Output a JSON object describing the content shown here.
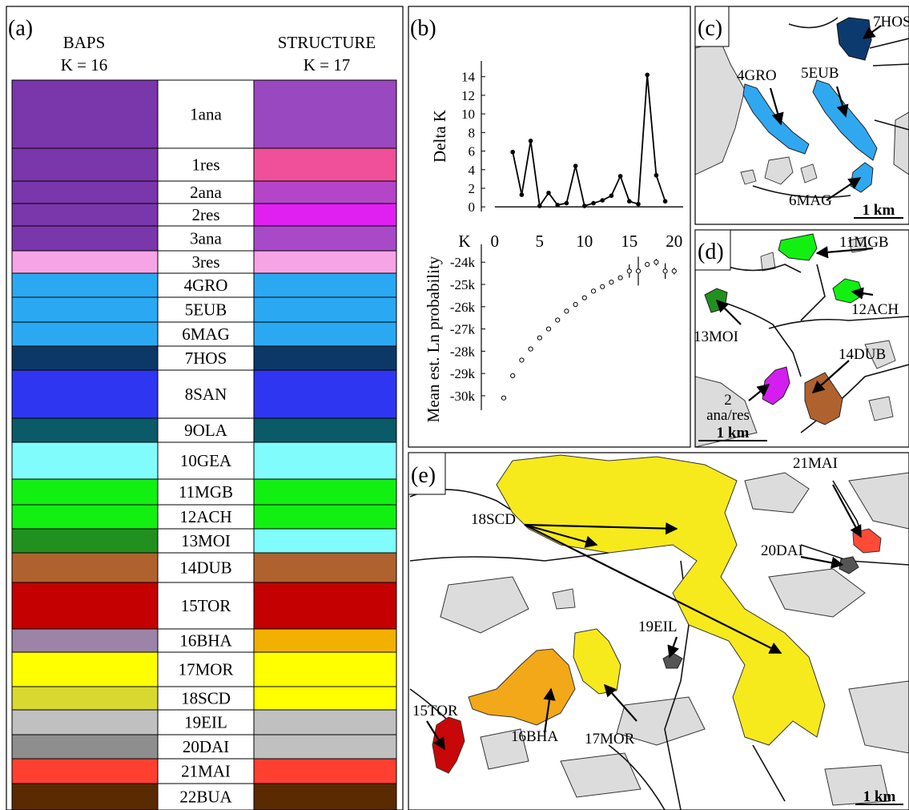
{
  "panel_a": {
    "label": "(a)",
    "left_method": "BAPS",
    "left_k": "K = 16",
    "right_method": "STRUCTURE",
    "right_k": "K = 17",
    "populations": [
      {
        "name": "1ana",
        "baps_color": "#7a36ab",
        "structure_color": "#9a48c0"
      },
      {
        "name": "1res",
        "baps_color": "#7a36ab",
        "structure_color": "#f0509a"
      },
      {
        "name": "2ana",
        "baps_color": "#7a36ab",
        "structure_color": "#b545c8"
      },
      {
        "name": "2res",
        "baps_color": "#7a36ab",
        "structure_color": "#e020f0"
      },
      {
        "name": "3ana",
        "baps_color": "#7a36ab",
        "structure_color": "#a84ac8"
      },
      {
        "name": "3res",
        "baps_color": "#f7a4e6",
        "structure_color": "#f7a4e6"
      },
      {
        "name": "4GRO",
        "baps_color": "#2aa9f2",
        "structure_color": "#2aa9f2"
      },
      {
        "name": "5EUB",
        "baps_color": "#2aa9f2",
        "structure_color": "#2aa9f2"
      },
      {
        "name": "6MAG",
        "baps_color": "#2aa9f2",
        "structure_color": "#2aa9f2"
      },
      {
        "name": "7HOS",
        "baps_color": "#0b3866",
        "structure_color": "#0b3866"
      },
      {
        "name": "8SAN",
        "baps_color": "#2f36f2",
        "structure_color": "#2f36f2"
      },
      {
        "name": "9OLA",
        "baps_color": "#0a5a68",
        "structure_color": "#0a5a68"
      },
      {
        "name": "10GEA",
        "baps_color": "#80fcfc",
        "structure_color": "#80fcfc"
      },
      {
        "name": "11MGB",
        "baps_color": "#12f012",
        "structure_color": "#12f012"
      },
      {
        "name": "12ACH",
        "baps_color": "#12f012",
        "structure_color": "#12f012"
      },
      {
        "name": "13MOI",
        "baps_color": "#22901e",
        "structure_color": "#80fcfc"
      },
      {
        "name": "14DUB",
        "baps_color": "#b0622e",
        "structure_color": "#b0622e"
      },
      {
        "name": "15TOR",
        "baps_color": "#c40000",
        "structure_color": "#c40000"
      },
      {
        "name": "16BHA",
        "baps_color": "#9c84a8",
        "structure_color": "#f2b000"
      },
      {
        "name": "17MOR",
        "baps_color": "#ffff00",
        "structure_color": "#ffff00"
      },
      {
        "name": "18SCD",
        "baps_color": "#d8d830",
        "structure_color": "#ffff00"
      },
      {
        "name": "19EIL",
        "baps_color": "#c0c0c0",
        "structure_color": "#c0c0c0"
      },
      {
        "name": "20DAI",
        "baps_color": "#8e8e8e",
        "structure_color": "#c0c0c0"
      },
      {
        "name": "21MAI",
        "baps_color": "#ff4030",
        "structure_color": "#ff4030"
      },
      {
        "name": "22BUA",
        "baps_color": "#5a2a00",
        "structure_color": "#5a2a00"
      }
    ]
  },
  "panel_b": {
    "label": "(b)"
  },
  "chart_data": [
    {
      "type": "line",
      "y_axis_label": "Delta K",
      "x_axis_label": "K",
      "color": "#000000",
      "x": [
        2,
        3,
        4,
        5,
        6,
        7,
        8,
        9,
        10,
        11,
        12,
        13,
        14,
        15,
        16,
        17,
        18,
        19
      ],
      "values": [
        5.9,
        1.3,
        7.1,
        0.1,
        1.5,
        0.2,
        0.4,
        4.4,
        0.1,
        0.4,
        0.7,
        1.2,
        3.3,
        0.6,
        0.3,
        14.2,
        3.4,
        0.6
      ],
      "xlim": [
        -1.5,
        21
      ],
      "ylim": [
        -0.5,
        15.7
      ],
      "xticks": [
        0,
        5,
        10,
        15,
        20
      ],
      "yticks": [
        0,
        2,
        4,
        6,
        8,
        10,
        12,
        14
      ]
    },
    {
      "type": "scatter",
      "y_axis_label": "Mean est. Ln probability",
      "color": "#000000",
      "x": [
        1,
        2,
        3,
        4,
        5,
        6,
        7,
        8,
        9,
        10,
        11,
        12,
        13,
        14,
        15,
        16,
        17,
        18,
        19,
        20
      ],
      "values": [
        -30100,
        -29100,
        -28400,
        -27900,
        -27400,
        -27000,
        -26600,
        -26200,
        -25900,
        -25600,
        -25300,
        -25100,
        -24900,
        -24700,
        -24400,
        -24400,
        -24100,
        -24000,
        -24400,
        -24400
      ],
      "errors": [
        60,
        60,
        60,
        60,
        60,
        60,
        60,
        60,
        60,
        60,
        60,
        60,
        60,
        80,
        300,
        650,
        100,
        150,
        350,
        150
      ],
      "xlim": [
        -1.5,
        21
      ],
      "ylim": [
        -30650,
        -23200
      ],
      "yticks": [
        {
          "value": -24000,
          "label": "-24k"
        },
        {
          "value": -25000,
          "label": "-25k"
        },
        {
          "value": -26000,
          "label": "-26k"
        },
        {
          "value": -27000,
          "label": "-27k"
        },
        {
          "value": -28000,
          "label": "-28k"
        },
        {
          "value": -29000,
          "label": "-29k"
        },
        {
          "value": -30000,
          "label": "-30k"
        }
      ]
    }
  ],
  "panel_c": {
    "label": "(c)",
    "sites": [
      "7HOS",
      "4GRO",
      "5EUB",
      "6MAG"
    ],
    "scale": "1 km"
  },
  "panel_d": {
    "label": "(d)",
    "sites": [
      "11MGB",
      "12ACH",
      "13MOI",
      "14DUB"
    ],
    "mixed_site": [
      "2",
      "ana/res"
    ],
    "scale": "1 km"
  },
  "panel_e": {
    "label": "(e)",
    "sites": [
      "21MAI",
      "18SCD",
      "20DAI",
      "19EIL",
      "15TOR",
      "16BHA",
      "17MOR"
    ],
    "scale": "1 km"
  }
}
